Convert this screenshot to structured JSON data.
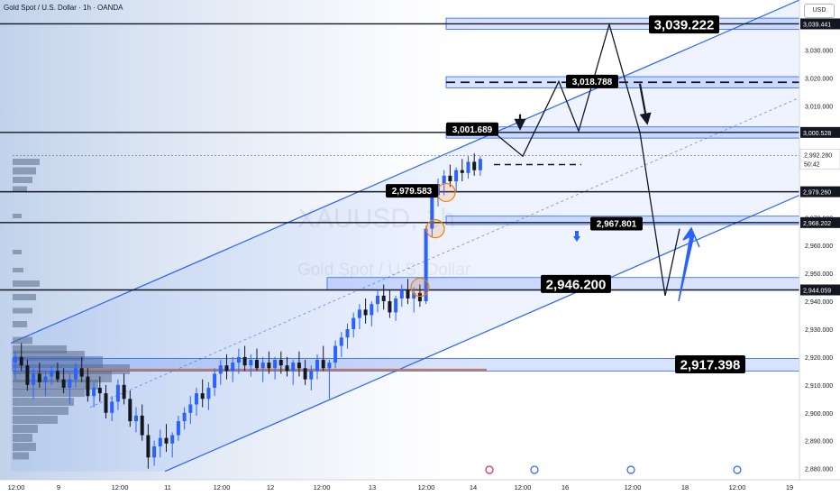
{
  "header": {
    "title": "Gold Spot / U.S. Dollar · 1h · OANDA",
    "currency": "USD"
  },
  "watermark": {
    "symbol": "XAUUSD, 1h",
    "name": "Gold Spot / U.S. Dollar"
  },
  "colors": {
    "up": "#2962ff",
    "down": "#131722",
    "channel": "#2962ff",
    "orange": "#f57c00",
    "background": "#ffffff"
  },
  "chart_data": {
    "type": "candlestick",
    "ylim": [
      2876,
      3048
    ],
    "y_ticks": [
      2880,
      2890,
      2900,
      2910,
      2920,
      2930,
      2940,
      2950,
      2960,
      2970,
      2980,
      2990,
      3000,
      3010,
      3020,
      3030
    ],
    "y_tick_labels": [
      "2,880.000",
      "2,890.000",
      "2,900.000",
      "2,910.000",
      "2,920.000",
      "2,930.000",
      "2,940.000",
      "2,950.000",
      "2,960.000",
      "2,970.000",
      "2,980.000",
      "2,990.000",
      "3,000.000",
      "3,010.000",
      "3,020.000",
      "3,030.000"
    ],
    "x_labels": [
      "12:00",
      "9",
      "12:00",
      "11",
      "12:00",
      "12",
      "12:00",
      "13",
      "12:00",
      "14",
      "12:00",
      "16",
      "12:00",
      "18",
      "12:00",
      "19"
    ],
    "current_price": {
      "value": 2992.28,
      "label": "2,992.280",
      "countdown": "50:42"
    },
    "horizontal_levels": [
      {
        "value": 3039.441,
        "label": "3,039.441",
        "style": "solid"
      },
      {
        "value": 3000.528,
        "label": "3,000.528",
        "style": "solid"
      },
      {
        "value": 2979.26,
        "label": "2,979.260",
        "style": "solid"
      },
      {
        "value": 2968.202,
        "label": "2,968.202",
        "style": "solid"
      },
      {
        "value": 2944.059,
        "label": "2,944.059",
        "style": "solid"
      },
      {
        "value": 3018.5,
        "label": "",
        "style": "dashed"
      }
    ],
    "annotations": [
      {
        "value": 3039.222,
        "label": "3,039.222",
        "size": "large"
      },
      {
        "value": 3018.788,
        "label": "3,018.788",
        "size": "small"
      },
      {
        "value": 3001.689,
        "label": "3,001.689",
        "size": "small"
      },
      {
        "value": 2979.583,
        "label": "2,979.583",
        "size": "small"
      },
      {
        "value": 2967.801,
        "label": "2,967.801",
        "size": "small"
      },
      {
        "value": 2946.2,
        "label": "2,946.200",
        "size": "large"
      },
      {
        "value": 2917.398,
        "label": "2,917.398",
        "size": "large"
      }
    ],
    "zones": [
      {
        "from": 3037.5,
        "to": 3041.5
      },
      {
        "from": 3016.5,
        "to": 3020.5
      },
      {
        "from": 2998.5,
        "to": 3002.5
      },
      {
        "from": 2967.5,
        "to": 2970.5
      },
      {
        "from": 2944.0,
        "to": 2948.5
      },
      {
        "from": 2915.0,
        "to": 2919.5
      }
    ],
    "projected_path": [
      3000.5,
      2992.0,
      3018.8,
      3001.0,
      3039.2,
      3000.5,
      2942.0,
      2966.0
    ],
    "candles": [
      [
        2918,
        2922,
        2912,
        2920
      ],
      [
        2920,
        2925,
        2915,
        2917
      ],
      [
        2917,
        2919,
        2908,
        2910
      ],
      [
        2910,
        2916,
        2905,
        2914
      ],
      [
        2914,
        2918,
        2909,
        2911
      ],
      [
        2911,
        2915,
        2906,
        2913
      ],
      [
        2913,
        2917,
        2910,
        2915
      ],
      [
        2915,
        2918,
        2911,
        2912
      ],
      [
        2912,
        2916,
        2907,
        2909
      ],
      [
        2909,
        2914,
        2903,
        2912
      ],
      [
        2912,
        2918,
        2909,
        2916
      ],
      [
        2916,
        2920,
        2911,
        2913
      ],
      [
        2913,
        2916,
        2904,
        2906
      ],
      [
        2906,
        2911,
        2902,
        2909
      ],
      [
        2909,
        2913,
        2904,
        2907
      ],
      [
        2907,
        2910,
        2898,
        2900
      ],
      [
        2900,
        2906,
        2897,
        2904
      ],
      [
        2904,
        2912,
        2901,
        2910
      ],
      [
        2910,
        2914,
        2903,
        2905
      ],
      [
        2905,
        2908,
        2895,
        2897
      ],
      [
        2897,
        2902,
        2893,
        2899
      ],
      [
        2899,
        2903,
        2890,
        2892
      ],
      [
        2892,
        2896,
        2880,
        2884
      ],
      [
        2884,
        2890,
        2881,
        2888
      ],
      [
        2888,
        2894,
        2884,
        2891
      ],
      [
        2891,
        2896,
        2886,
        2889
      ],
      [
        2889,
        2893,
        2884,
        2892
      ],
      [
        2892,
        2899,
        2890,
        2897
      ],
      [
        2897,
        2902,
        2894,
        2900
      ],
      [
        2900,
        2906,
        2896,
        2903
      ],
      [
        2903,
        2909,
        2899,
        2907
      ],
      [
        2907,
        2912,
        2902,
        2905
      ],
      [
        2905,
        2911,
        2901,
        2909
      ],
      [
        2909,
        2916,
        2906,
        2914
      ],
      [
        2914,
        2919,
        2910,
        2917
      ],
      [
        2917,
        2921,
        2912,
        2915
      ],
      [
        2915,
        2920,
        2911,
        2918
      ],
      [
        2918,
        2923,
        2914,
        2920
      ],
      [
        2920,
        2924,
        2915,
        2917
      ],
      [
        2917,
        2921,
        2913,
        2919
      ],
      [
        2919,
        2923,
        2915,
        2916
      ],
      [
        2916,
        2920,
        2911,
        2918
      ],
      [
        2918,
        2922,
        2914,
        2916
      ],
      [
        2916,
        2920,
        2912,
        2919
      ],
      [
        2919,
        2922,
        2914,
        2917
      ],
      [
        2917,
        2920,
        2913,
        2915
      ],
      [
        2915,
        2919,
        2910,
        2918
      ],
      [
        2918,
        2922,
        2913,
        2916
      ],
      [
        2916,
        2919,
        2910,
        2912
      ],
      [
        2912,
        2917,
        2908,
        2915
      ],
      [
        2915,
        2921,
        2912,
        2919
      ],
      [
        2919,
        2924,
        2915,
        2916
      ],
      [
        2916,
        2919,
        2905,
        2918
      ],
      [
        2918,
        2926,
        2916,
        2924
      ],
      [
        2924,
        2929,
        2920,
        2927
      ],
      [
        2927,
        2932,
        2923,
        2930
      ],
      [
        2930,
        2936,
        2927,
        2934
      ],
      [
        2934,
        2939,
        2930,
        2937
      ],
      [
        2937,
        2941,
        2932,
        2935
      ],
      [
        2935,
        2940,
        2931,
        2939
      ],
      [
        2939,
        2944,
        2936,
        2942
      ],
      [
        2942,
        2946,
        2937,
        2940
      ],
      [
        2940,
        2944,
        2934,
        2936
      ],
      [
        2936,
        2942,
        2933,
        2941
      ],
      [
        2941,
        2946,
        2938,
        2944
      ],
      [
        2944,
        2948,
        2939,
        2941
      ],
      [
        2941,
        2945,
        2936,
        2943
      ],
      [
        2943,
        2946,
        2938,
        2940
      ],
      [
        2940,
        2967,
        2939,
        2966
      ],
      [
        2966,
        2980,
        2963,
        2978
      ],
      [
        2978,
        2984,
        2974,
        2982
      ],
      [
        2982,
        2987,
        2978,
        2985
      ],
      [
        2985,
        2989,
        2981,
        2983
      ],
      [
        2983,
        2988,
        2979,
        2987
      ],
      [
        2987,
        2991,
        2983,
        2986
      ],
      [
        2986,
        2992,
        2984,
        2990
      ],
      [
        2990,
        2993,
        2985,
        2987
      ],
      [
        2987,
        2992,
        2985,
        2991
      ]
    ]
  }
}
